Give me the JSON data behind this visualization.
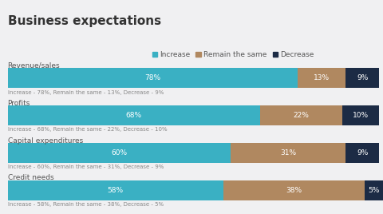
{
  "title": "Business expectations",
  "background_color": "#f0f0f2",
  "categories": [
    "Revenue/sales",
    "Profits",
    "Capital expenditures",
    "Credit needs"
  ],
  "increase": [
    78,
    68,
    60,
    58
  ],
  "remain": [
    13,
    22,
    31,
    38
  ],
  "decrease": [
    9,
    10,
    9,
    5
  ],
  "subtexts": [
    "Increase - 78%, Remain the same - 13%, Decrease - 9%",
    "Increase - 68%, Remain the same - 22%, Decrease - 10%",
    "Increase - 60%, Remain the same - 31%, Decrease - 9%",
    "Increase - 58%, Remain the same - 38%, Decrease - 5%"
  ],
  "color_increase": "#3ab0c3",
  "color_remain": "#b08860",
  "color_decrease": "#1c2b45",
  "legend_labels": [
    "Increase",
    "Remain the same",
    "Decrease"
  ],
  "bar_height": 0.55,
  "title_fontsize": 11,
  "cat_fontsize": 6.5,
  "subtext_fontsize": 5.0,
  "bar_label_fontsize": 6.5,
  "legend_fontsize": 6.5
}
